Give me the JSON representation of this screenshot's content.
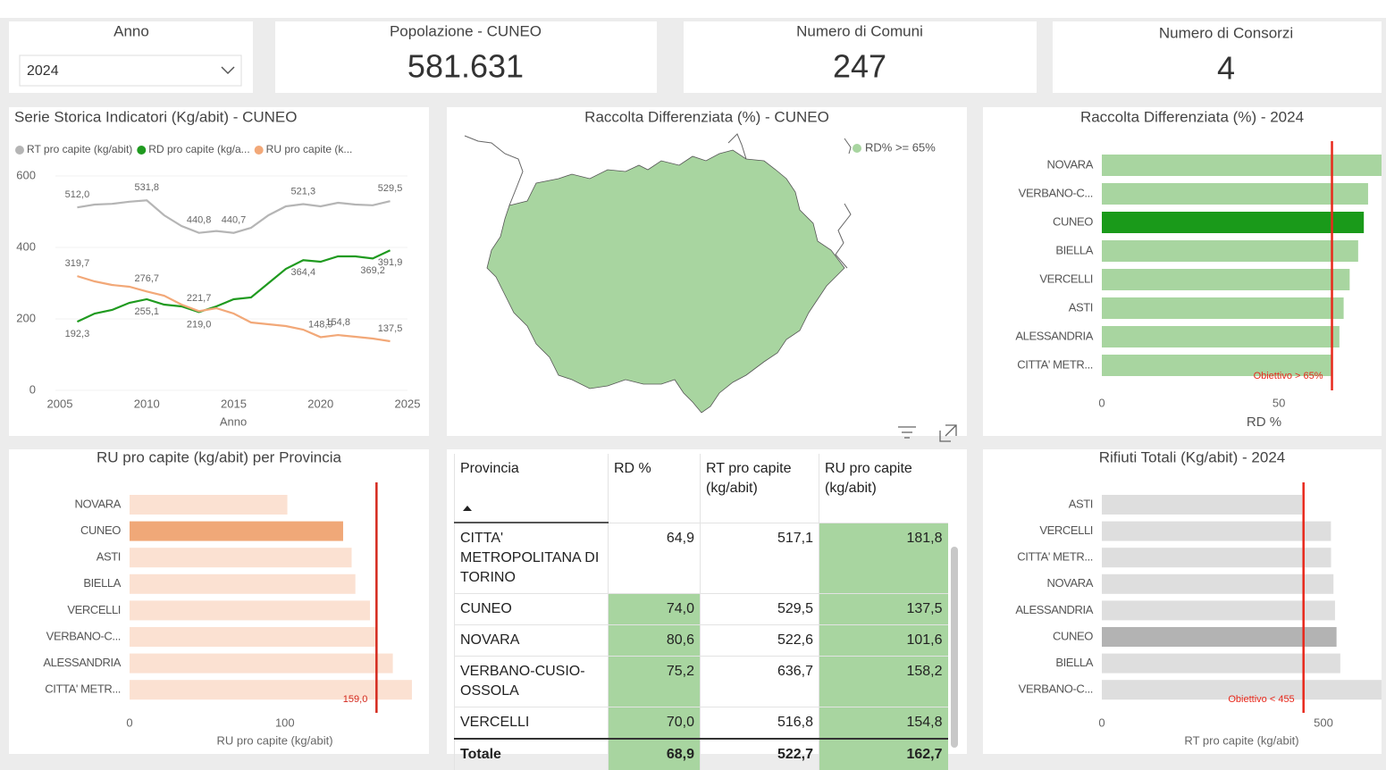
{
  "slicer": {
    "label": "Anno",
    "selected": "2024"
  },
  "cards": [
    {
      "title": "Popolazione - CUNEO",
      "value": "581.631"
    },
    {
      "title": "Numero di Comuni",
      "value": "247"
    },
    {
      "title": "Numero di Consorzi",
      "value": "4"
    }
  ],
  "chart_data": [
    {
      "type": "line",
      "title": "Serie Storica Indicatori (Kg/abit) - CUNEO",
      "xlabel": "Anno",
      "x": [
        2006,
        2007,
        2008,
        2009,
        2010,
        2011,
        2012,
        2013,
        2014,
        2015,
        2016,
        2017,
        2018,
        2019,
        2020,
        2021,
        2022,
        2023,
        2024
      ],
      "xlim": [
        2005,
        2025
      ],
      "xticks": [
        2005,
        2010,
        2015,
        2020,
        2025
      ],
      "ylim": [
        0,
        600
      ],
      "yticks": [
        0,
        200,
        400,
        600
      ],
      "grid": true,
      "series": [
        {
          "name": "RT pro capite (kg/abit)",
          "color": "#b5b5b5",
          "values": [
            512.0,
            520,
            522,
            528,
            531.8,
            490,
            460,
            440.8,
            446,
            440.7,
            455,
            490,
            515,
            521.3,
            515,
            525,
            520,
            518,
            529.5
          ],
          "value_labels": [
            "512,0",
            null,
            null,
            null,
            "531,8",
            null,
            null,
            "440,8",
            null,
            "440,7",
            null,
            null,
            null,
            "521,3",
            null,
            null,
            null,
            null,
            "529,5"
          ]
        },
        {
          "name": "RD pro capite (kg/a...",
          "color": "#1f9a1f",
          "values": [
            192.3,
            215,
            225,
            245,
            255.1,
            240,
            235,
            219.0,
            235,
            255,
            260,
            300,
            340,
            364.4,
            360,
            375,
            375,
            369.2,
            391.9
          ],
          "value_labels": [
            "192,3",
            null,
            null,
            null,
            "255,1",
            null,
            null,
            "219,0",
            null,
            null,
            null,
            null,
            null,
            "364,4",
            null,
            null,
            null,
            "369,2",
            "391,9"
          ]
        },
        {
          "name": "RU pro capite (k...",
          "color": "#f2a878",
          "values": [
            319.7,
            305,
            295,
            290,
            276.7,
            265,
            240,
            221.7,
            230,
            215,
            190,
            185,
            180,
            170,
            148.9,
            154.8,
            150,
            145,
            137.5
          ],
          "value_labels": [
            "319,7",
            null,
            null,
            null,
            "276,7",
            null,
            null,
            "221,7",
            null,
            null,
            null,
            null,
            null,
            null,
            "148,9",
            "154,8",
            null,
            null,
            "137,5"
          ]
        }
      ]
    },
    {
      "type": "bar",
      "orientation": "horizontal",
      "title": "Raccolta Differenziata (%) - 2024",
      "xlabel": "RD %",
      "categories": [
        "NOVARA",
        "VERBANO-C...",
        "CUNEO",
        "BIELLA",
        "VERCELLI",
        "ASTI",
        "ALESSANDRIA",
        "CITTA' METR..."
      ],
      "values": [
        80.6,
        75.2,
        74.0,
        72.4,
        70.0,
        68.3,
        67.1,
        64.9
      ],
      "colors": [
        "#a8d5a0",
        "#a8d5a0",
        "#1a9a1a",
        "#a8d5a0",
        "#a8d5a0",
        "#a8d5a0",
        "#a8d5a0",
        "#a8d5a0"
      ],
      "xlim": [
        0,
        79
      ],
      "xticks": [
        0,
        50
      ],
      "reference": {
        "value": 65,
        "label": "Obiettivo > 65%",
        "color": "#e8291c"
      }
    },
    {
      "type": "bar",
      "orientation": "horizontal",
      "title": "RU pro capite (kg/abit) per Provincia",
      "xlabel": "RU pro capite (kg/abit)",
      "categories": [
        "NOVARA",
        "CUNEO",
        "ASTI",
        "BIELLA",
        "VERCELLI",
        "VERBANO-C...",
        "ALESSANDRIA",
        "CITTA' METR..."
      ],
      "values": [
        101.6,
        137.5,
        143,
        145.4,
        154.8,
        158.2,
        169.5,
        181.8
      ],
      "colors": [
        "#fbe1d2",
        "#f0a878",
        "#fbe1d2",
        "#fbe1d2",
        "#fbe1d2",
        "#fbe1d2",
        "#fbe1d2",
        "#fbe1d2"
      ],
      "xlim": [
        0,
        187
      ],
      "xticks": [
        0,
        100
      ],
      "reference": {
        "value": 159,
        "label": "159,0",
        "color": "#d42a1e"
      }
    },
    {
      "type": "bar",
      "orientation": "horizontal",
      "title": "Rifiuti Totali (Kg/abit) - 2024",
      "xlabel": "RT pro capite (kg/abit)",
      "categories": [
        "ASTI",
        "VERCELLI",
        "CITTA' METR...",
        "NOVARA",
        "ALESSANDRIA",
        "CUNEO",
        "BIELLA",
        "VERBANO-C..."
      ],
      "values": [
        451.6,
        516.8,
        517.1,
        522.6,
        526,
        529.5,
        538,
        636.7
      ],
      "colors": [
        "#dedede",
        "#dedede",
        "#dedede",
        "#dedede",
        "#dedede",
        "#b3b3b3",
        "#dedede",
        "#dedede"
      ],
      "xlim": [
        0,
        631
      ],
      "xticks": [
        0,
        500
      ],
      "reference": {
        "value": 455,
        "label": "Obiettivo < 455",
        "color": "#e8291c"
      }
    }
  ],
  "map": {
    "title": "Raccolta Differenziata (%) - CUNEO",
    "legend": "RD% >= 65%",
    "color": "#a8d5a0"
  },
  "table": {
    "columns": [
      "Provincia",
      "RD %",
      "RT pro capite (kg/abit)",
      "RU pro capite (kg/abit)"
    ],
    "rows": [
      [
        "CITTA' METROPOLITANA DI TORINO",
        "64,9",
        "517,1",
        "181,8"
      ],
      [
        "CUNEO",
        "74,0",
        "529,5",
        "137,5"
      ],
      [
        "NOVARA",
        "80,6",
        "522,6",
        "101,6"
      ],
      [
        "VERBANO-CUSIO-OSSOLA",
        "75,2",
        "636,7",
        "158,2"
      ],
      [
        "VERCELLI",
        "70,0",
        "516,8",
        "154,8"
      ]
    ],
    "total": [
      "Totale",
      "68,9",
      "522,7",
      "162,7"
    ],
    "highlight_color": "#a8d5a0",
    "highlighted_cells": [
      [
        0,
        3
      ],
      [
        1,
        1
      ],
      [
        1,
        3
      ],
      [
        2,
        1
      ],
      [
        2,
        3
      ],
      [
        3,
        1
      ],
      [
        3,
        3
      ],
      [
        4,
        1
      ],
      [
        4,
        3
      ]
    ],
    "highlighted_total": [
      1,
      3
    ]
  }
}
